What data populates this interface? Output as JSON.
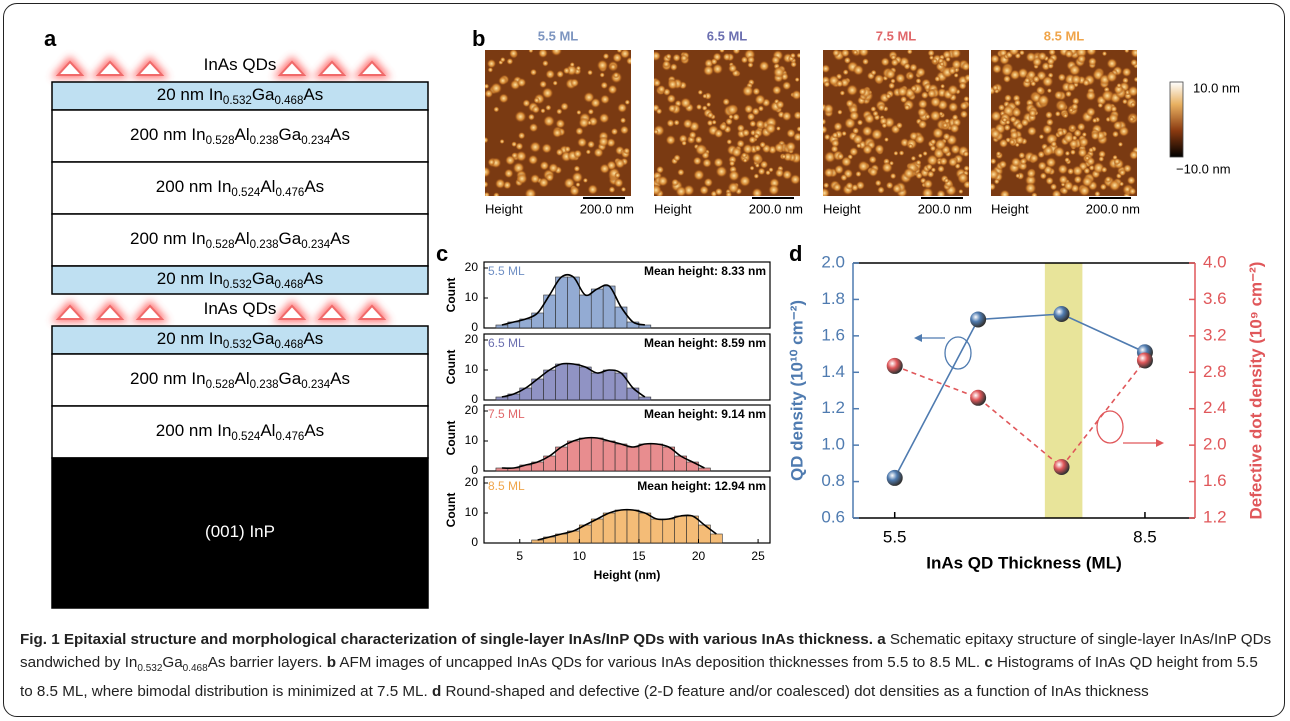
{
  "panel_labels": [
    "a",
    "b",
    "c",
    "d"
  ],
  "panel_a": {
    "layers": [
      {
        "qd": true,
        "segments": [
          "InAs QDs"
        ]
      },
      {
        "fill": "#bfe0f2",
        "segments": [
          "20 nm In",
          "0.532",
          "Ga",
          "0.468",
          "As"
        ]
      },
      {
        "fill": "#ffffff",
        "segments": [
          "200 nm In",
          "0.528",
          "Al",
          "0.238",
          "Ga",
          "0.234",
          "As"
        ]
      },
      {
        "fill": "#ffffff",
        "segments": [
          "200 nm In",
          "0.524",
          "Al",
          "0.476",
          "As"
        ]
      },
      {
        "fill": "#ffffff",
        "segments": [
          "200 nm In",
          "0.528",
          "Al",
          "0.238",
          "Ga",
          "0.234",
          "As"
        ]
      },
      {
        "fill": "#bfe0f2",
        "segments": [
          "20 nm In",
          "0.532",
          "Ga",
          "0.468",
          "As"
        ]
      },
      {
        "qd": true,
        "segments": [
          "InAs QDs"
        ]
      },
      {
        "fill": "#bfe0f2",
        "segments": [
          "20 nm In",
          "0.532",
          "Ga",
          "0.468",
          "As"
        ]
      },
      {
        "fill": "#ffffff",
        "segments": [
          "200 nm In",
          "0.528",
          "Al",
          "0.238",
          "Ga",
          "0.234",
          "As"
        ]
      },
      {
        "fill": "#ffffff",
        "segments": [
          "200 nm In",
          "0.524",
          "Al",
          "0.476",
          "As"
        ]
      },
      {
        "fill": "#000000",
        "segments": [
          "(001) InP"
        ]
      }
    ]
  },
  "panel_b": {
    "images": [
      {
        "title": "5.5 ML",
        "color": "#7d95c0",
        "left_label": "Height",
        "scale_label": "200.0 nm",
        "dots": 160
      },
      {
        "title": "6.5 ML",
        "color": "#6b6fb0",
        "left_label": "Height",
        "scale_label": "200.0 nm",
        "dots": 230
      },
      {
        "title": "7.5 ML",
        "color": "#e0676a",
        "left_label": "Height",
        "scale_label": "200.0 nm",
        "dots": 300
      },
      {
        "title": "8.5 ML",
        "color": "#f0a54a",
        "left_label": "Height",
        "scale_label": "200.0 nm",
        "dots": 330
      }
    ],
    "colorbar": {
      "top_label": "10.0 nm",
      "bottom_label": "−10.0 nm"
    }
  },
  "chart_data": [
    {
      "type": "histogram",
      "label": "5.5 ML",
      "annotation": "Mean height: 8.33 nm",
      "color": "#6f8fc4",
      "ylabel": "Count",
      "bins": [
        3,
        4,
        5,
        6,
        7,
        8,
        9,
        10,
        11,
        12,
        13,
        14,
        15,
        16
      ],
      "values": [
        1,
        2,
        3,
        5,
        11,
        17,
        17,
        11,
        13,
        14,
        7,
        2,
        1
      ],
      "xlim": [
        2,
        26
      ],
      "ylim": [
        0,
        22
      ],
      "yticks": [
        0,
        10,
        20
      ]
    },
    {
      "type": "histogram",
      "label": "6.5 ML",
      "annotation": "Mean height: 8.59 nm",
      "color": "#6b6fb0",
      "ylabel": "Count",
      "bins": [
        3,
        4,
        5,
        6,
        7,
        8,
        9,
        10,
        11,
        12,
        13,
        14,
        15,
        16
      ],
      "values": [
        1,
        2,
        4,
        7,
        10,
        12,
        12,
        11,
        9,
        10,
        9,
        4,
        1
      ],
      "xlim": [
        2,
        26
      ],
      "ylim": [
        0,
        22
      ],
      "yticks": [
        0,
        10,
        20
      ]
    },
    {
      "type": "histogram",
      "label": "7.5 ML",
      "annotation": "Mean height: 9.14 nm",
      "color": "#e0676a",
      "ylabel": "Count",
      "bins": [
        3,
        4,
        5,
        6,
        7,
        8,
        9,
        10,
        11,
        12,
        13,
        14,
        15,
        16,
        17,
        18,
        19,
        20,
        21
      ],
      "values": [
        1,
        1,
        2,
        3,
        5,
        8,
        10,
        11,
        11,
        10,
        9,
        8,
        9,
        9,
        8,
        5,
        3,
        1
      ],
      "xlim": [
        2,
        26
      ],
      "ylim": [
        0,
        22
      ],
      "yticks": [
        0,
        10,
        20
      ]
    },
    {
      "type": "histogram",
      "label": "8.5 ML",
      "annotation": "Mean height: 12.94 nm",
      "color": "#f0a54a",
      "ylabel": "Count",
      "xlabel": "Height (nm)",
      "bins": [
        6,
        7,
        8,
        9,
        10,
        11,
        12,
        13,
        14,
        15,
        16,
        17,
        18,
        19,
        20,
        21,
        22
      ],
      "values": [
        1,
        2,
        3,
        4,
        6,
        8,
        10,
        11,
        11,
        10,
        8,
        8,
        9,
        9,
        6,
        3
      ],
      "xlim": [
        2,
        26
      ],
      "ylim": [
        0,
        22
      ],
      "yticks": [
        0,
        10,
        20
      ],
      "xticks": [
        5,
        10,
        15,
        20,
        25
      ]
    },
    {
      "type": "line",
      "xlabel": "InAs QD Thickness (ML)",
      "ylabel": "QD density (10¹⁰ cm⁻²)",
      "y2label": "Defective dot density (10⁹ cm⁻²)",
      "x": [
        5.5,
        6.5,
        7.5,
        8.5
      ],
      "xlim": [
        5,
        9.1
      ],
      "xticks": [
        5.5,
        8.5
      ],
      "ylim": [
        0.6,
        2.0
      ],
      "yticks": [
        0.6,
        0.8,
        {
          "value": 1,
          "label": "1.0"
        },
        1.2,
        1.4,
        1.6,
        1.8,
        {
          "value": 2,
          "label": "2.0"
        }
      ],
      "y2lim": [
        1.2,
        4.0
      ],
      "y2ticks": [
        1.2,
        1.6,
        {
          "value": 2,
          "label": "2.0"
        },
        2.4,
        2.8,
        3.2,
        3.6,
        {
          "value": 4,
          "label": "4.0"
        }
      ],
      "highlight": [
        7.3,
        7.75
      ],
      "series": [
        {
          "color": "#4f7bb0",
          "values": [
            0.82,
            1.69,
            1.72,
            1.51
          ]
        },
        {
          "color": "#e0575a",
          "axis": "y2",
          "dashed": true,
          "values": [
            2.87,
            2.52,
            1.76,
            2.93
          ]
        }
      ]
    }
  ],
  "caption": {
    "title": "Fig. 1 Epitaxial structure and morphological characterization of single-layer InAs/InP QDs with various InAs thickness.",
    "items": [
      {
        "label": "a",
        "text": [
          "Schematic epitaxy structure of single-layer InAs/InP QDs sandwiched by In",
          "0.532",
          "Ga",
          "0.468",
          "As barrier layers."
        ]
      },
      {
        "label": "b",
        "text": [
          "AFM images of uncapped InAs QDs for various InAs deposition thicknesses from 5.5 to 8.5 ML."
        ]
      },
      {
        "label": "c",
        "text": [
          "Histograms of InAs QD height from 5.5 to 8.5 ML, where bimodal distribution is minimized at 7.5 ML."
        ]
      },
      {
        "label": "d",
        "text": [
          "Round-shaped and defective (2-D feature and/or coalesced) dot densities as a function of InAs thickness"
        ]
      }
    ]
  }
}
